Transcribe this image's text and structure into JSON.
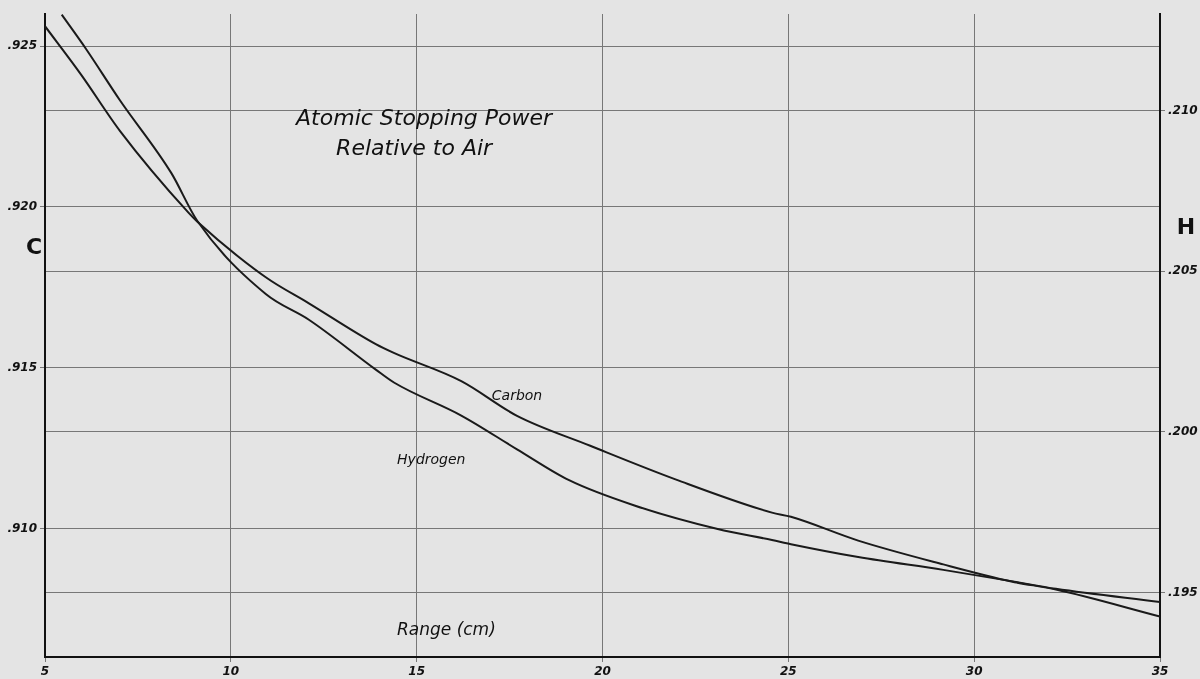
{
  "chart_data": {
    "type": "line",
    "title": "Atomic Stopping Power\nRelative to Air",
    "xlabel": "Range (cm)",
    "ylabel": "C",
    "y2label": "H",
    "series": [
      {
        "name": "Carbon",
        "color": "#1a1a1a",
        "axis": "y",
        "x": [
          5,
          5.98,
          7.02,
          8.86,
          9.1,
          10.94,
          12.1,
          13.9,
          14.4,
          16.2,
          17.7,
          19.67,
          22.0,
          24.56,
          25.07,
          26.88,
          29.17,
          31.0,
          32.2,
          35
        ],
        "values": [
          0.92562,
          0.9241,
          0.92236,
          0.91982,
          0.91954,
          0.91781,
          0.917,
          0.91573,
          0.91545,
          0.91458,
          0.9135,
          0.91257,
          0.91151,
          0.91049,
          0.91036,
          0.90962,
          0.90888,
          0.90835,
          0.9081,
          0.90726
        ]
      },
      {
        "name": "Hydrogen",
        "color": "#1a1a1a",
        "axis": "y2",
        "x": [
          5.45,
          6.1,
          7.02,
          8.4,
          9.1,
          10.94,
          12.1,
          13.9,
          14.4,
          16.2,
          17.7,
          19.1,
          20.84,
          23.1,
          24.56,
          25.07,
          26.88,
          29.17,
          31.0,
          32.2,
          35
        ],
        "values": [
          0.21298,
          0.21192,
          0.21031,
          0.20805,
          0.20656,
          0.20429,
          0.20349,
          0.20194,
          0.20153,
          0.20051,
          0.19946,
          0.1985,
          0.19772,
          0.19698,
          0.19664,
          0.19651,
          0.19611,
          0.19571,
          0.19536,
          0.19512,
          0.19471
        ]
      }
    ],
    "xlim": [
      5,
      35
    ],
    "xticks": [
      5,
      10,
      15,
      20,
      25,
      30,
      35
    ],
    "ylim": [
      0.906,
      0.926
    ],
    "yticks": [
      {
        "value": 0.925,
        "label": ".925"
      },
      {
        "value": 0.92,
        "label": ".920"
      },
      {
        "value": 0.915,
        "label": ".915"
      },
      {
        "value": 0.91,
        "label": ".910"
      }
    ],
    "y2lim": [
      0.193,
      0.213
    ],
    "y2ticks": [
      {
        "value": 0.21,
        "label": ".210"
      },
      {
        "value": 0.205,
        "label": ".205"
      },
      {
        "value": 0.2,
        "label": ".200"
      },
      {
        "value": 0.195,
        "label": ".195"
      }
    ],
    "grid": true,
    "legend": false,
    "marker": "none",
    "line_style": "solid"
  }
}
